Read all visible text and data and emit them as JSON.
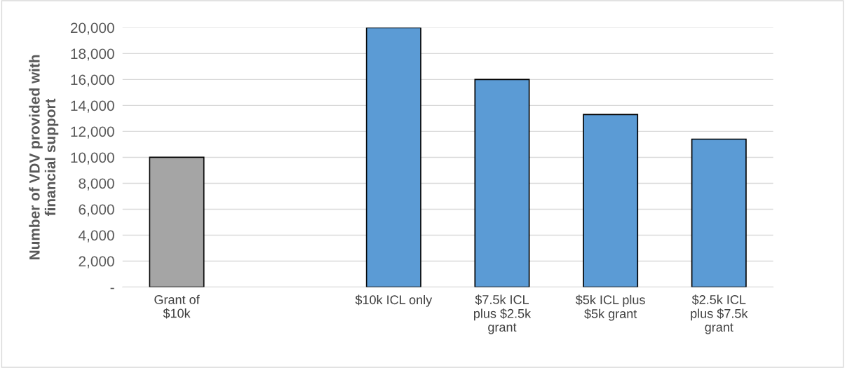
{
  "chart_data": {
    "type": "bar",
    "ylabel": "Number of VDV provided with\nfinancial support",
    "categories": [
      "Grant of\n$10k",
      null,
      "$10k ICL only",
      "$7.5k ICL\nplus $2.5k\ngrant",
      "$5k ICL plus\n$5k grant",
      "$2.5k ICL\nplus $7.5k\ngrant"
    ],
    "values": [
      10000,
      null,
      20000,
      16000,
      13300,
      11400
    ],
    "colors": [
      "#a5a5a5",
      "#5b9bd5",
      "#5b9bd5",
      "#5b9bd5",
      "#5b9bd5",
      "#5b9bd5"
    ],
    "ylim": [
      0,
      20000
    ],
    "yticks": [
      {
        "value": 0,
        "label": "-"
      },
      {
        "value": 2000,
        "label": "2,000"
      },
      {
        "value": 4000,
        "label": "4,000"
      },
      {
        "value": 6000,
        "label": "6,000"
      },
      {
        "value": 8000,
        "label": "8,000"
      },
      {
        "value": 10000,
        "label": "10,000"
      },
      {
        "value": 12000,
        "label": "12,000"
      },
      {
        "value": 14000,
        "label": "14,000"
      },
      {
        "value": 16000,
        "label": "16,000"
      },
      {
        "value": 18000,
        "label": "18,000"
      },
      {
        "value": 20000,
        "label": "20,000"
      }
    ],
    "grid": "y",
    "legend": false
  }
}
